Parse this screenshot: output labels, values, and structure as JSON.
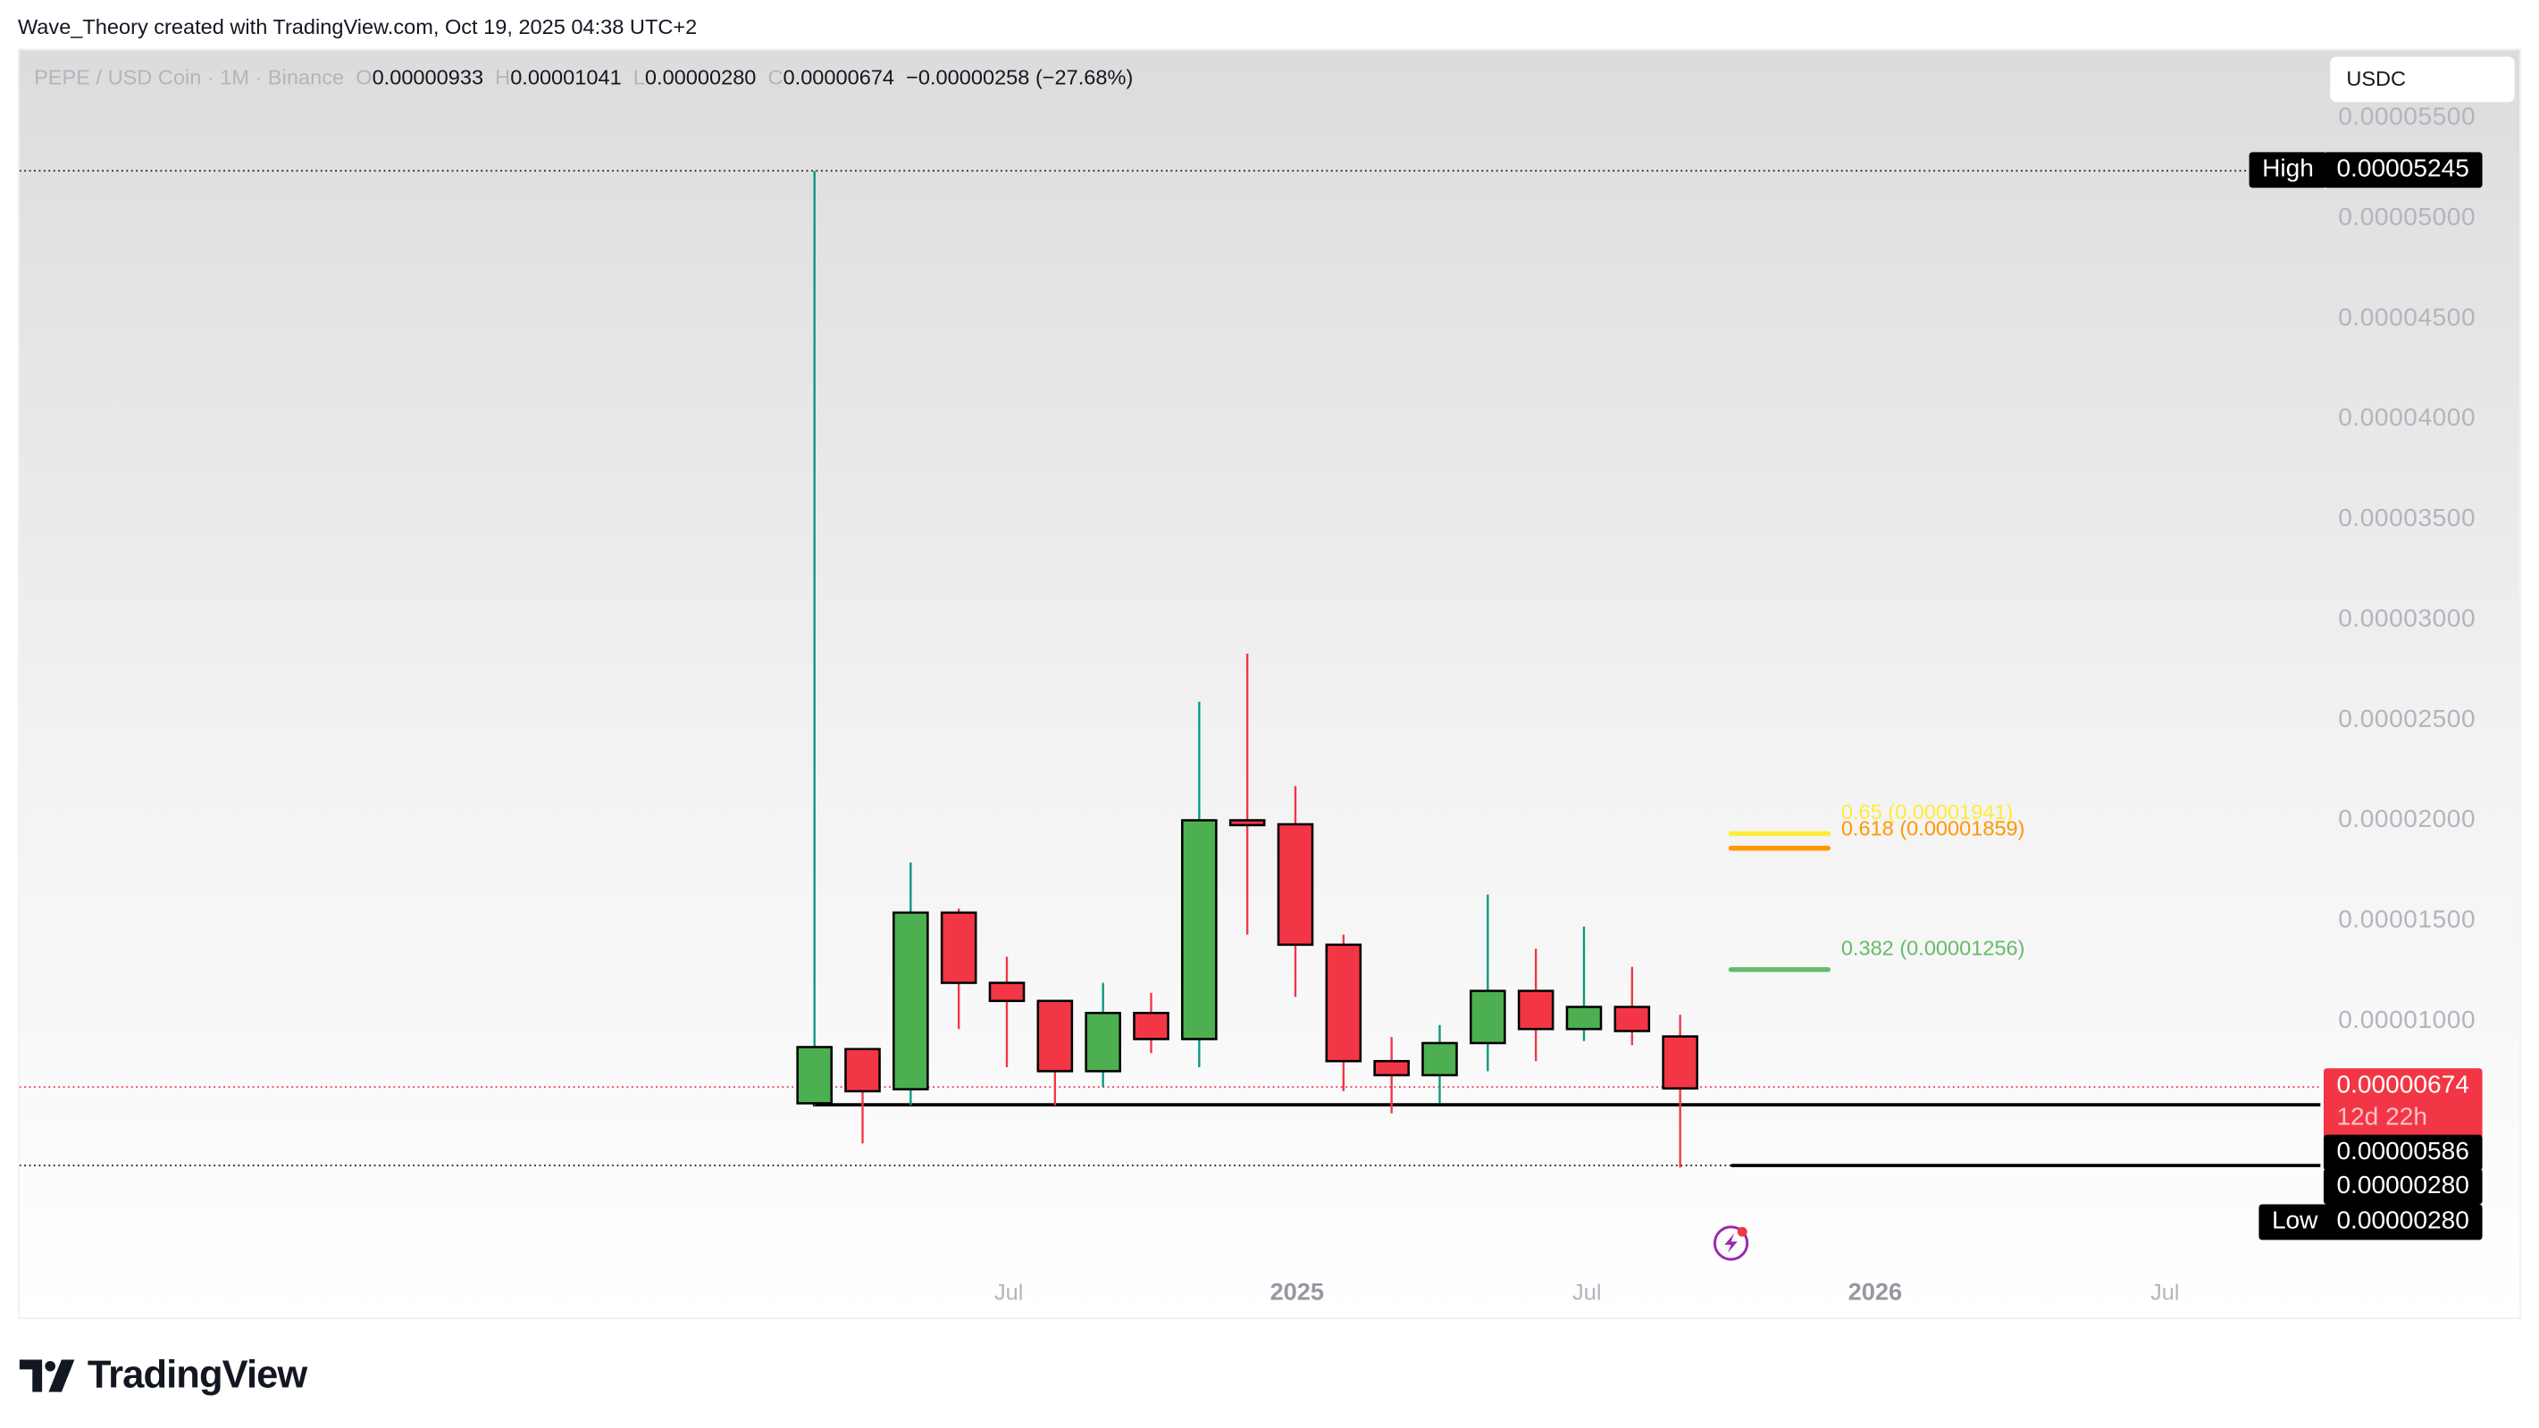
{
  "credit": "Wave_Theory created with TradingView.com, Oct 19, 2025 04:38 UTC+2",
  "legend": {
    "symbol": "PEPE / USD Coin · 1M · Binance",
    "o_label": "O",
    "o": "0.00000933",
    "h_label": "H",
    "h": "0.00001041",
    "l_label": "L",
    "l": "0.00000280",
    "c_label": "C",
    "c": "0.00000674",
    "change": "−0.00000258 (−27.68%)"
  },
  "currency_button": "USDC",
  "y_axis": [
    "0.00005500",
    "0.00005000",
    "0.00004500",
    "0.00004000",
    "0.00003500",
    "0.00003000",
    "0.00002500",
    "0.00002000",
    "0.00001500",
    "0.00001000"
  ],
  "x_axis": [
    {
      "label": "Jul",
      "bold": false
    },
    {
      "label": "2025",
      "bold": true
    },
    {
      "label": "Jul",
      "bold": false
    },
    {
      "label": "2026",
      "bold": true
    },
    {
      "label": "Jul",
      "bold": false
    }
  ],
  "badges": {
    "high_label": "High",
    "high_value": "0.00005245",
    "last_price": "0.00000674",
    "countdown": "12d 22h",
    "support_1": "0.00000586",
    "support_2": "0.00000280",
    "low_label": "Low",
    "low_value": "0.00000280"
  },
  "fib": [
    {
      "label": "0.65 (0.00001941)",
      "color": "#ffeb3b"
    },
    {
      "label": "0.618 (0.00001859)",
      "color": "#ff9800"
    },
    {
      "label": "0.382 (0.00001256)",
      "color": "#66bb6a"
    }
  ],
  "colors": {
    "up": "#4caf50",
    "down": "#f23645",
    "up_wick": "#089981",
    "down_wick": "#f23645"
  },
  "logo_text": "TradingView",
  "chart_data": {
    "type": "candlestick",
    "title": "PEPE / USD Coin · 1M · Binance",
    "xlabel": "",
    "ylabel": "USDC",
    "ylim": [
      0,
      5.75e-05
    ],
    "categories": [
      "2024-04",
      "2024-05",
      "2024-06",
      "2024-07",
      "2024-08",
      "2024-09",
      "2024-10",
      "2024-11",
      "2024-12",
      "2025-01",
      "2025-02",
      "2025-03",
      "2025-04",
      "2025-05",
      "2025-06",
      "2025-07",
      "2025-08",
      "2025-09",
      "2025-10"
    ],
    "ohlc": [
      {
        "o": 6e-06,
        "h": 5.245e-05,
        "l": 5.9e-06,
        "c": 8.8e-06
      },
      {
        "o": 8.7e-06,
        "h": 8.7e-06,
        "l": 4e-06,
        "c": 6.6e-06
      },
      {
        "o": 6.7e-06,
        "h": 1.8e-05,
        "l": 5.9e-06,
        "c": 1.55e-05
      },
      {
        "o": 1.55e-05,
        "h": 1.57e-05,
        "l": 9.7e-06,
        "c": 1.2e-05
      },
      {
        "o": 1.2e-05,
        "h": 1.33e-05,
        "l": 7.8e-06,
        "c": 1.11e-05
      },
      {
        "o": 1.11e-05,
        "h": 1.11e-05,
        "l": 5.9e-06,
        "c": 7.6e-06
      },
      {
        "o": 7.6e-06,
        "h": 1.2e-05,
        "l": 6.8e-06,
        "c": 1.05e-05
      },
      {
        "o": 1.05e-05,
        "h": 1.15e-05,
        "l": 8.5e-06,
        "c": 9.2e-06
      },
      {
        "o": 9.2e-06,
        "h": 2.6e-05,
        "l": 7.8e-06,
        "c": 2.01e-05
      },
      {
        "o": 2.01e-05,
        "h": 2.84e-05,
        "l": 1.44e-05,
        "c": 1.99e-05
      },
      {
        "o": 1.99e-05,
        "h": 2.18e-05,
        "l": 1.13e-05,
        "c": 1.39e-05
      },
      {
        "o": 1.39e-05,
        "h": 1.44e-05,
        "l": 6.6e-06,
        "c": 8.1e-06
      },
      {
        "o": 8.1e-06,
        "h": 9.3e-06,
        "l": 5.5e-06,
        "c": 7.4e-06
      },
      {
        "o": 7.4e-06,
        "h": 9.9e-06,
        "l": 6e-06,
        "c": 9e-06
      },
      {
        "o": 9e-06,
        "h": 1.64e-05,
        "l": 7.6e-06,
        "c": 1.16e-05
      },
      {
        "o": 1.16e-05,
        "h": 1.37e-05,
        "l": 8.1e-06,
        "c": 9.7e-06
      },
      {
        "o": 9.7e-06,
        "h": 1.48e-05,
        "l": 9.1e-06,
        "c": 1.08e-05
      },
      {
        "o": 1.08e-05,
        "h": 1.28e-05,
        "l": 8.9e-06,
        "c": 9.6e-06
      },
      {
        "o": 9.33e-06,
        "h": 1.041e-05,
        "l": 2.8e-06,
        "c": 6.74e-06
      }
    ],
    "horizontal_lines": [
      {
        "name": "High",
        "value": 5.245e-05,
        "style": "dotted"
      },
      {
        "name": "last",
        "value": 6.74e-06,
        "style": "dotted",
        "color": "#f23645"
      },
      {
        "name": "support",
        "value": 5.86e-06,
        "style": "solid"
      },
      {
        "name": "Low",
        "value": 2.8e-06,
        "style": "dotted/solid"
      }
    ],
    "fib_levels": [
      {
        "ratio": 0.65,
        "value": 1.941e-05
      },
      {
        "ratio": 0.618,
        "value": 1.859e-05
      },
      {
        "ratio": 0.382,
        "value": 1.256e-05
      }
    ],
    "grid": false,
    "legend_position": "top-left"
  }
}
